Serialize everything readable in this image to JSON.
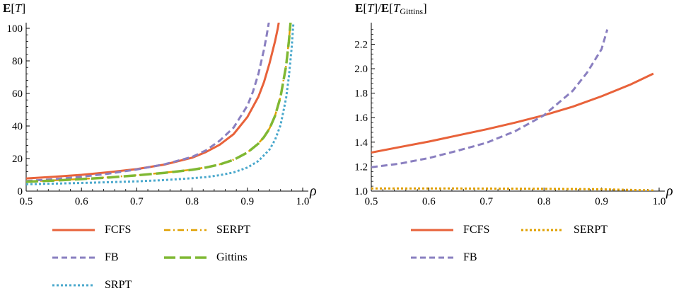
{
  "chart_data": [
    {
      "type": "line",
      "title": "",
      "ylabel": {
        "bold": "E",
        "open": "[",
        "var": "T",
        "close": "]"
      },
      "xlabel": "ρ",
      "xlim": [
        0.5,
        1.0
      ],
      "ylim": [
        0,
        100
      ],
      "x_ticks": [
        "0.5",
        "0.6",
        "0.7",
        "0.8",
        "0.9",
        "1.0"
      ],
      "y_ticks": [
        "0",
        "20",
        "40",
        "60",
        "80",
        "100"
      ],
      "grid": false,
      "legend_position": "bottom",
      "series": [
        {
          "name": "FCFS",
          "color": "#e8623a",
          "dash": "solid",
          "x": [
            0.5,
            0.55,
            0.6,
            0.65,
            0.7,
            0.75,
            0.8,
            0.825,
            0.85,
            0.875,
            0.9,
            0.92,
            0.93,
            0.94,
            0.95,
            0.955,
            0.96
          ],
          "y": [
            7.8,
            8.8,
            10.0,
            11.6,
            13.5,
            16.3,
            20.5,
            24.0,
            28.5,
            35.0,
            45.5,
            58.0,
            67.0,
            78.5,
            92.0,
            100,
            110
          ]
        },
        {
          "name": "SERPT",
          "color": "#e0a000",
          "dash": "dashdot",
          "x": [
            0.5,
            0.55,
            0.6,
            0.65,
            0.7,
            0.75,
            0.8,
            0.825,
            0.85,
            0.875,
            0.9,
            0.92,
            0.93,
            0.94,
            0.95,
            0.96,
            0.97,
            0.975,
            0.98
          ],
          "y": [
            5.9,
            6.6,
            7.5,
            8.5,
            9.8,
            11.3,
            13.2,
            14.6,
            16.5,
            19.3,
            23.8,
            29.3,
            33.3,
            38.5,
            46.3,
            58.0,
            77.0,
            92.0,
            112
          ]
        },
        {
          "name": "FB",
          "color": "#8a7fc0",
          "dash": "dash",
          "x": [
            0.5,
            0.55,
            0.6,
            0.65,
            0.7,
            0.75,
            0.8,
            0.825,
            0.85,
            0.875,
            0.9,
            0.91,
            0.92,
            0.93,
            0.935,
            0.94
          ],
          "y": [
            6.2,
            7.3,
            8.8,
            10.8,
            13.3,
            16.5,
            21.0,
            25.0,
            31.0,
            39.0,
            52.5,
            61.0,
            72.0,
            87.0,
            96.0,
            106
          ]
        },
        {
          "name": "Gittins",
          "color": "#7fb833",
          "dash": "longdash",
          "x": [
            0.5,
            0.55,
            0.6,
            0.65,
            0.7,
            0.75,
            0.8,
            0.825,
            0.85,
            0.875,
            0.9,
            0.92,
            0.93,
            0.94,
            0.95,
            0.96,
            0.97,
            0.975,
            0.98
          ],
          "y": [
            5.8,
            6.5,
            7.4,
            8.4,
            9.7,
            11.2,
            13.1,
            14.5,
            16.4,
            19.2,
            23.7,
            29.2,
            33.2,
            38.4,
            46.2,
            57.9,
            76.8,
            91.8,
            111
          ]
        },
        {
          "name": "SRPT",
          "color": "#4aa8cc",
          "dash": "dot",
          "x": [
            0.5,
            0.55,
            0.6,
            0.65,
            0.7,
            0.75,
            0.8,
            0.825,
            0.85,
            0.875,
            0.9,
            0.92,
            0.94,
            0.95,
            0.96,
            0.97,
            0.975,
            0.98,
            0.985
          ],
          "y": [
            4.2,
            4.6,
            5.0,
            5.5,
            6.0,
            6.8,
            7.9,
            8.6,
            9.8,
            11.5,
            14.5,
            18.5,
            25.5,
            31.5,
            40.5,
            57.0,
            70.0,
            88.0,
            112
          ]
        }
      ],
      "legend": [
        "FCFS",
        "SERPT",
        "FB",
        "Gittins",
        "SRPT"
      ]
    },
    {
      "type": "line",
      "title": "",
      "ylabel": {
        "bold": "E",
        "open": "[",
        "var": "T",
        "close": "]/",
        "bold2": "E",
        "open2": "[",
        "var2": "T",
        "sub": "Gittins",
        "close2": "]"
      },
      "xlabel": "ρ",
      "xlim": [
        0.5,
        1.0
      ],
      "ylim": [
        1.0,
        2.33
      ],
      "x_ticks": [
        "0.5",
        "0.6",
        "0.7",
        "0.8",
        "0.9",
        "1.0"
      ],
      "y_ticks": [
        "1.0",
        "1.2",
        "1.4",
        "1.6",
        "1.8",
        "2.0",
        "2.2"
      ],
      "grid": false,
      "legend_position": "bottom",
      "series": [
        {
          "name": "FCFS",
          "color": "#e8623a",
          "dash": "solid",
          "x": [
            0.5,
            0.55,
            0.6,
            0.65,
            0.7,
            0.75,
            0.8,
            0.85,
            0.9,
            0.95,
            0.99
          ],
          "y": [
            1.315,
            1.36,
            1.405,
            1.455,
            1.505,
            1.56,
            1.62,
            1.69,
            1.775,
            1.87,
            1.96
          ]
        },
        {
          "name": "SERPT",
          "color": "#e0a000",
          "dash": "dot",
          "x": [
            0.5,
            0.6,
            0.7,
            0.8,
            0.9,
            0.95,
            0.99
          ],
          "y": [
            1.022,
            1.022,
            1.021,
            1.019,
            1.015,
            1.01,
            1.005
          ]
        },
        {
          "name": "FB",
          "color": "#8a7fc0",
          "dash": "dash",
          "x": [
            0.5,
            0.55,
            0.6,
            0.65,
            0.7,
            0.75,
            0.8,
            0.85,
            0.875,
            0.9,
            0.91
          ],
          "y": [
            1.195,
            1.225,
            1.27,
            1.33,
            1.395,
            1.49,
            1.62,
            1.82,
            1.97,
            2.16,
            2.32
          ]
        }
      ],
      "legend": [
        "FCFS",
        "SERPT",
        "FB"
      ]
    }
  ]
}
